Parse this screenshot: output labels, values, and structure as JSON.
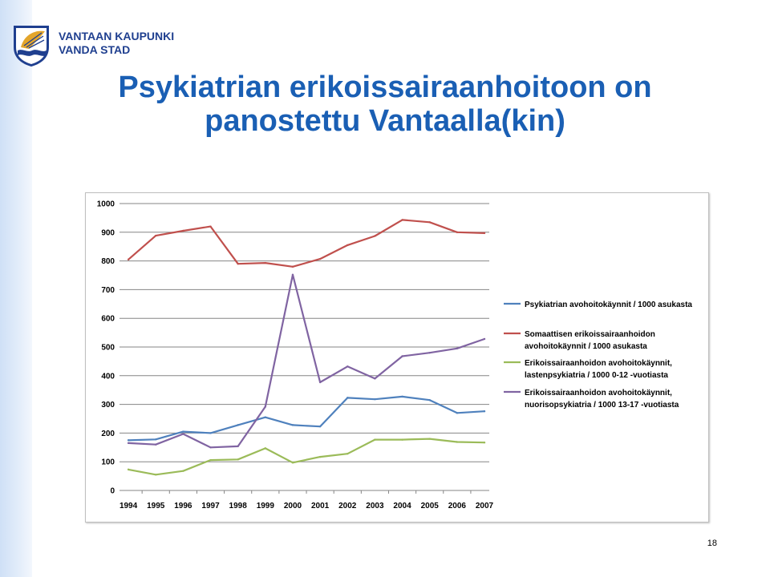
{
  "header": {
    "org_line1": "VANTAAN KAUPUNKI",
    "org_line2": "VANDA STAD",
    "logo_icon": "vantaa-coat-of-arms-icon",
    "title_line1": "Psykiatrian erikoissairaanhoitoon on",
    "title_line2": "panostettu Vantaalla(kin)"
  },
  "page_number": "18",
  "chart_data": {
    "type": "line",
    "categories": [
      "1994",
      "1995",
      "1996",
      "1997",
      "1998",
      "1999",
      "2000",
      "2001",
      "2002",
      "2003",
      "2004",
      "2005",
      "2006",
      "2007"
    ],
    "y_ticks": [
      "0",
      "100",
      "200",
      "300",
      "400",
      "500",
      "600",
      "700",
      "800",
      "900",
      "1000"
    ],
    "ylim": [
      0,
      1000
    ],
    "grid": true,
    "legend_position": "right",
    "series": [
      {
        "name": "Psykiatrian avohoitokäynnit / 1000 asukasta",
        "legend_lines": [
          "Psykiatrian avohoitokäynnit / 1000 asukasta"
        ],
        "color": "#4f81bd",
        "values": [
          175,
          178,
          205,
          200,
          228,
          255,
          228,
          223,
          323,
          318,
          327,
          315,
          270,
          276
        ]
      },
      {
        "name": "Somaattisen erikoissairaanhoidon avohoitokäynnit / 1000 asukasta",
        "legend_lines": [
          "Somaattisen erikoissairaanhoidon",
          "avohoitokäynnit / 1000 asukasta"
        ],
        "color": "#c0504d",
        "values": [
          805,
          888,
          905,
          920,
          790,
          793,
          780,
          807,
          855,
          887,
          943,
          935,
          900,
          897
        ]
      },
      {
        "name": "Erikoissairaanhoidon avohoitokäynnit, lastenpsykiatria / 1000 0-12 -vuotiasta",
        "legend_lines": [
          "Erikoissairaanhoidon avohoitokäynnit,",
          "lastenpsykiatria / 1000 0-12 -vuotiasta"
        ],
        "color": "#9bbb59",
        "values": [
          73,
          55,
          68,
          106,
          108,
          147,
          97,
          117,
          128,
          177,
          177,
          180,
          169,
          167
        ]
      },
      {
        "name": "Erikoissairaanhoidon avohoitokäynnit, nuorisopsykiatria / 1000 13-17 -vuotiasta",
        "legend_lines": [
          "Erikoissairaanhoidon avohoitokäynnit,",
          "nuorisopsykiatria / 1000 13-17 -vuotiasta"
        ],
        "color": "#8064a2",
        "values": [
          165,
          160,
          197,
          150,
          154,
          292,
          752,
          377,
          432,
          390,
          468,
          480,
          495,
          528
        ]
      }
    ]
  }
}
